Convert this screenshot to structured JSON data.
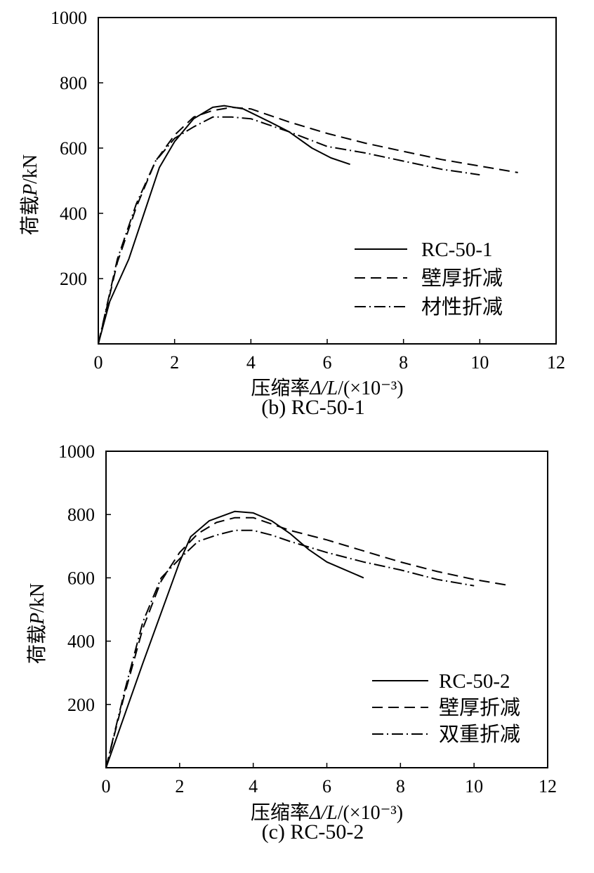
{
  "chart_data": [
    {
      "type": "line",
      "caption": "(b) RC-50-1",
      "ylabel_prefix": "荷载",
      "ylabel_var": "P",
      "ylabel_unit": "/kN",
      "xlabel_prefix": "压缩率",
      "xlabel_var": "Δ/L",
      "xlabel_unit": "/(×10⁻³)",
      "xlim": [
        0,
        12
      ],
      "ylim": [
        0,
        1000
      ],
      "xticks": [
        0,
        2,
        4,
        6,
        8,
        10,
        12
      ],
      "yticks": [
        200,
        400,
        600,
        800,
        1000
      ],
      "grid": false,
      "legend_position": "bottom-right",
      "series": [
        {
          "name": "RC-50-1",
          "style": "solid",
          "x": [
            0,
            0.3,
            0.8,
            1.2,
            1.6,
            2,
            2.5,
            3,
            3.3,
            3.8,
            4.5,
            5,
            5.6,
            6.1,
            6.6
          ],
          "y": [
            0,
            130,
            260,
            400,
            540,
            620,
            690,
            725,
            730,
            720,
            680,
            650,
            600,
            570,
            550
          ]
        },
        {
          "name": "壁厚折减",
          "style": "dashed",
          "x": [
            0,
            0.5,
            1,
            1.5,
            2,
            2.5,
            3,
            3.5,
            4,
            5,
            6,
            7,
            8,
            9,
            10,
            11
          ],
          "y": [
            0,
            250,
            420,
            560,
            640,
            695,
            715,
            725,
            720,
            680,
            645,
            615,
            590,
            565,
            545,
            525
          ]
        },
        {
          "name": "材性折减",
          "style": "dashdot",
          "x": [
            0,
            0.5,
            1,
            1.5,
            2,
            2.5,
            3,
            3.5,
            4,
            5,
            6,
            7,
            8,
            9,
            10
          ],
          "y": [
            0,
            260,
            430,
            560,
            630,
            665,
            695,
            695,
            690,
            650,
            605,
            585,
            560,
            535,
            518
          ]
        }
      ]
    },
    {
      "type": "line",
      "caption": "(c) RC-50-2",
      "ylabel_prefix": "荷载",
      "ylabel_var": "P",
      "ylabel_unit": "/kN",
      "xlabel_prefix": "压缩率",
      "xlabel_var": "Δ/L",
      "xlabel_unit": "/(×10⁻³)",
      "xlim": [
        0,
        12
      ],
      "ylim": [
        0,
        1000
      ],
      "xticks": [
        0,
        2,
        4,
        6,
        8,
        10,
        12
      ],
      "yticks": [
        200,
        400,
        600,
        800,
        1000
      ],
      "grid": false,
      "legend_position": "bottom-right",
      "series": [
        {
          "name": "RC-50-2",
          "style": "solid",
          "x": [
            0,
            1,
            2,
            2.3,
            2.8,
            3.5,
            4,
            4.5,
            5,
            5.5,
            6,
            7
          ],
          "y": [
            0,
            330,
            650,
            730,
            780,
            810,
            805,
            780,
            740,
            690,
            650,
            600
          ]
        },
        {
          "name": "壁厚折减",
          "style": "dashed",
          "x": [
            0,
            0.5,
            1,
            1.5,
            2,
            2.5,
            3,
            3.5,
            4,
            4.5,
            5,
            6,
            7,
            8,
            9,
            10,
            11
          ],
          "y": [
            0,
            230,
            440,
            590,
            680,
            740,
            775,
            790,
            790,
            770,
            750,
            720,
            685,
            650,
            620,
            595,
            575
          ]
        },
        {
          "name": "双重折减",
          "style": "dashdot",
          "x": [
            0,
            0.5,
            1,
            1.5,
            2,
            2.5,
            3,
            3.5,
            4,
            4.5,
            5,
            6,
            7,
            8,
            9,
            10
          ],
          "y": [
            0,
            240,
            460,
            600,
            660,
            715,
            735,
            750,
            750,
            735,
            715,
            680,
            650,
            625,
            595,
            575
          ]
        }
      ]
    }
  ]
}
